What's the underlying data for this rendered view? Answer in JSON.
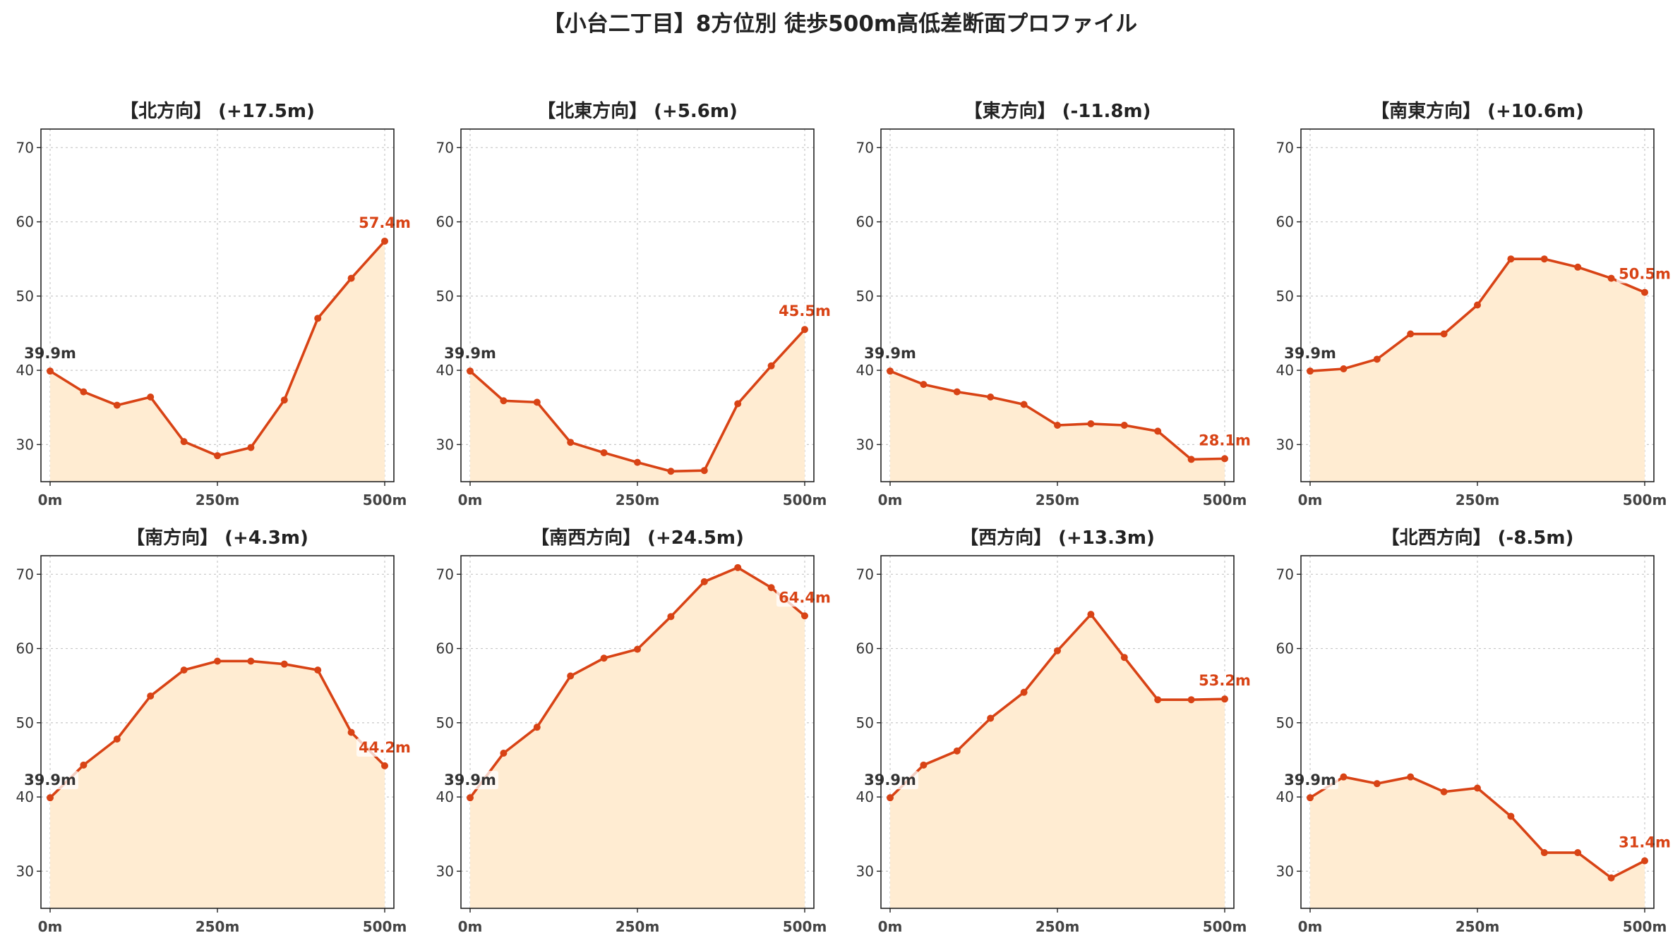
{
  "title": "【小台二丁目】8方位別 徒歩500m高低差断面プロファイル",
  "colors": {
    "line": "#d84315",
    "fill": "#ffecd2",
    "start_label": "#333333",
    "end_label": "#d84315",
    "grid": "#c8c8c8"
  },
  "chart_data": [
    {
      "type": "area",
      "title": "【北方向】 (+17.5m)",
      "x": [
        0,
        50,
        100,
        150,
        200,
        250,
        300,
        350,
        400,
        450,
        500
      ],
      "y": [
        39.9,
        37.1,
        35.3,
        36.4,
        30.4,
        28.5,
        29.6,
        36.0,
        47.0,
        52.4,
        57.4
      ],
      "start_label": "39.9m",
      "end_label": "57.4m",
      "ylim": [
        25,
        72.5
      ],
      "yticks": [
        "30",
        "40",
        "50",
        "60",
        "70"
      ],
      "xticks": [
        "0m",
        "250m",
        "500m"
      ],
      "grid": true
    },
    {
      "type": "area",
      "title": "【北東方向】 (+5.6m)",
      "x": [
        0,
        50,
        100,
        150,
        200,
        250,
        300,
        350,
        400,
        450,
        500
      ],
      "y": [
        39.9,
        35.9,
        35.7,
        30.3,
        28.9,
        27.6,
        26.4,
        26.5,
        35.5,
        40.6,
        45.5
      ],
      "start_label": "39.9m",
      "end_label": "45.5m",
      "ylim": [
        25,
        72.5
      ],
      "yticks": [
        "30",
        "40",
        "50",
        "60",
        "70"
      ],
      "xticks": [
        "0m",
        "250m",
        "500m"
      ],
      "grid": true
    },
    {
      "type": "area",
      "title": "【東方向】 (-11.8m)",
      "x": [
        0,
        50,
        100,
        150,
        200,
        250,
        300,
        350,
        400,
        450,
        500
      ],
      "y": [
        39.9,
        38.1,
        37.1,
        36.4,
        35.4,
        32.6,
        32.8,
        32.6,
        31.8,
        28.0,
        28.1
      ],
      "start_label": "39.9m",
      "end_label": "28.1m",
      "ylim": [
        25,
        72.5
      ],
      "yticks": [
        "30",
        "40",
        "50",
        "60",
        "70"
      ],
      "xticks": [
        "0m",
        "250m",
        "500m"
      ],
      "grid": true
    },
    {
      "type": "area",
      "title": "【南東方向】 (+10.6m)",
      "x": [
        0,
        50,
        100,
        150,
        200,
        250,
        300,
        350,
        400,
        450,
        500
      ],
      "y": [
        39.9,
        40.2,
        41.5,
        44.9,
        44.9,
        48.8,
        55.0,
        55.0,
        53.9,
        52.4,
        50.5
      ],
      "start_label": "39.9m",
      "end_label": "50.5m",
      "ylim": [
        25,
        72.5
      ],
      "yticks": [
        "30",
        "40",
        "50",
        "60",
        "70"
      ],
      "xticks": [
        "0m",
        "250m",
        "500m"
      ],
      "grid": true
    },
    {
      "type": "area",
      "title": "【南方向】 (+4.3m)",
      "x": [
        0,
        50,
        100,
        150,
        200,
        250,
        300,
        350,
        400,
        450,
        500
      ],
      "y": [
        39.9,
        44.3,
        47.8,
        53.6,
        57.1,
        58.3,
        58.3,
        57.9,
        57.1,
        48.7,
        44.2
      ],
      "start_label": "39.9m",
      "end_label": "44.2m",
      "ylim": [
        25,
        72.5
      ],
      "yticks": [
        "30",
        "40",
        "50",
        "60",
        "70"
      ],
      "xticks": [
        "0m",
        "250m",
        "500m"
      ],
      "grid": true
    },
    {
      "type": "area",
      "title": "【南西方向】 (+24.5m)",
      "x": [
        0,
        50,
        100,
        150,
        200,
        250,
        300,
        350,
        400,
        450,
        500
      ],
      "y": [
        39.9,
        45.9,
        49.4,
        56.3,
        58.7,
        59.9,
        64.3,
        69.0,
        70.9,
        68.2,
        64.4
      ],
      "start_label": "39.9m",
      "end_label": "64.4m",
      "ylim": [
        25,
        72.5
      ],
      "yticks": [
        "30",
        "40",
        "50",
        "60",
        "70"
      ],
      "xticks": [
        "0m",
        "250m",
        "500m"
      ],
      "grid": true
    },
    {
      "type": "area",
      "title": "【西方向】 (+13.3m)",
      "x": [
        0,
        50,
        100,
        150,
        200,
        250,
        300,
        350,
        400,
        450,
        500
      ],
      "y": [
        39.9,
        44.3,
        46.2,
        50.6,
        54.1,
        59.7,
        64.6,
        58.8,
        53.1,
        53.1,
        53.2
      ],
      "start_label": "39.9m",
      "end_label": "53.2m",
      "ylim": [
        25,
        72.5
      ],
      "yticks": [
        "30",
        "40",
        "50",
        "60",
        "70"
      ],
      "xticks": [
        "0m",
        "250m",
        "500m"
      ],
      "grid": true
    },
    {
      "type": "area",
      "title": "【北西方向】 (-8.5m)",
      "x": [
        0,
        50,
        100,
        150,
        200,
        250,
        300,
        350,
        400,
        450,
        500
      ],
      "y": [
        39.9,
        42.7,
        41.8,
        42.7,
        40.7,
        41.2,
        37.4,
        32.5,
        32.5,
        29.1,
        31.4
      ],
      "start_label": "39.9m",
      "end_label": "31.4m",
      "ylim": [
        25,
        72.5
      ],
      "yticks": [
        "30",
        "40",
        "50",
        "60",
        "70"
      ],
      "xticks": [
        "0m",
        "250m",
        "500m"
      ],
      "grid": true
    }
  ]
}
